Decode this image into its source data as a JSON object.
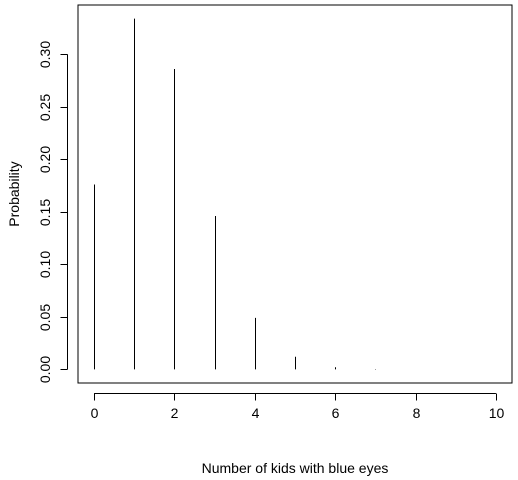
{
  "chart_data": {
    "type": "bar",
    "style": "spike",
    "title": "",
    "xlabel": "Number of kids with blue eyes",
    "ylabel": "Probability",
    "x": [
      0,
      1,
      2,
      3,
      4,
      5,
      6,
      7,
      8,
      9,
      10
    ],
    "values": [
      0.176,
      0.334,
      0.286,
      0.146,
      0.049,
      0.012,
      0.002,
      0.0003,
      3e-05,
      2e-06,
      1e-07
    ],
    "xlim": [
      -0.4,
      10.4
    ],
    "ylim": [
      -0.013,
      0.347
    ],
    "xticks": [
      0,
      2,
      4,
      6,
      8,
      10
    ],
    "xtick_labels": [
      "0",
      "2",
      "4",
      "6",
      "8",
      "10"
    ],
    "yticks": [
      0.0,
      0.05,
      0.1,
      0.15,
      0.2,
      0.25,
      0.3
    ],
    "ytick_labels": [
      "0.00",
      "0.05",
      "0.10",
      "0.15",
      "0.20",
      "0.25",
      "0.30"
    ],
    "grid": false,
    "legend": "none",
    "color": "#000000"
  }
}
